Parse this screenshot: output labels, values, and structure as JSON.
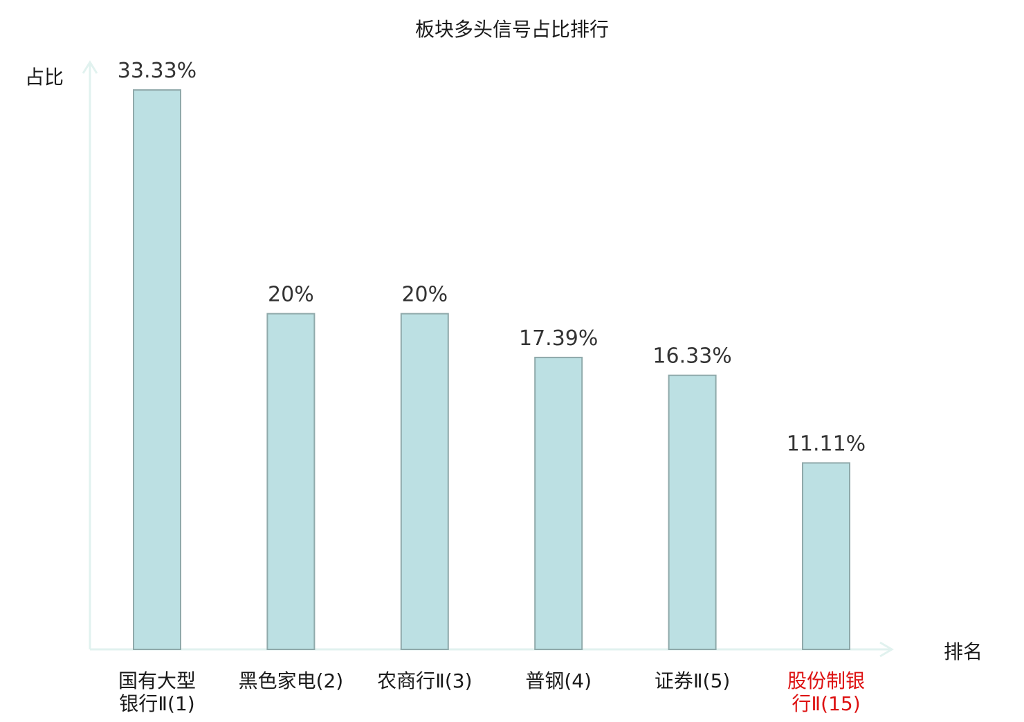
{
  "chart_data": {
    "type": "bar",
    "title": "板块多头信号占比排行",
    "ylabel": "占比",
    "xlabel": "排名",
    "categories": [
      {
        "lines": [
          "国有大型",
          "银行Ⅱ(1)"
        ],
        "highlight": false
      },
      {
        "lines": [
          "黑色家电(2)"
        ],
        "highlight": false
      },
      {
        "lines": [
          "农商行Ⅱ(3)"
        ],
        "highlight": false
      },
      {
        "lines": [
          "普钢(4)"
        ],
        "highlight": false
      },
      {
        "lines": [
          "证券Ⅱ(5)"
        ],
        "highlight": false
      },
      {
        "lines": [
          "股份制银",
          "行Ⅱ(15)"
        ],
        "highlight": true
      }
    ],
    "values": [
      33.33,
      20,
      20,
      17.39,
      16.33,
      11.11
    ],
    "value_labels": [
      "33.33%",
      "20%",
      "20%",
      "17.39%",
      "16.33%",
      "11.11%"
    ],
    "ylim": [
      0,
      35
    ],
    "grid": false,
    "legend": "none"
  },
  "colors": {
    "bar_fill": "#bce0e3",
    "bar_stroke": "#8fa9aa",
    "axis": "#e1f2ef",
    "text": "#1a1a1a",
    "value_text": "#333333",
    "highlight_text": "#dd1111"
  }
}
